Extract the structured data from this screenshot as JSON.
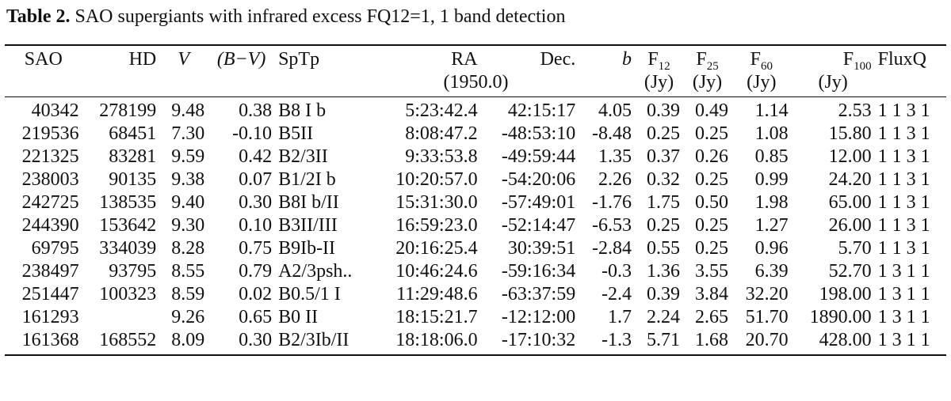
{
  "caption": {
    "label": "Table 2.",
    "text": "SAO supergiants with infrared excess FQ12=1, 1 band detection"
  },
  "header": {
    "sao": "SAO",
    "hd": "HD",
    "v": "V",
    "bv": "(B−V)",
    "sptp": "SpTp",
    "ra": "RA",
    "dec": "Dec.",
    "epoch": "(1950.0)",
    "b": "b",
    "f12": "F",
    "f12_sub": "12",
    "f25": "F",
    "f25_sub": "25",
    "f60": "F",
    "f60_sub": "60",
    "f100": "F",
    "f100_sub": "100",
    "fluxq": "FluxQ",
    "unit": "(Jy)"
  },
  "rows": [
    [
      "40342",
      "278199",
      "9.48",
      "0.38",
      "B8 I b",
      "5:23:42.4",
      "42:15:17",
      "4.05",
      "0.39",
      "0.49",
      "1.14",
      "2.53",
      "1 1 3 1"
    ],
    [
      "219536",
      "68451",
      "7.30",
      "-0.10",
      "B5II",
      "8:08:47.2",
      "-48:53:10",
      "-8.48",
      "0.25",
      "0.25",
      "1.08",
      "15.80",
      "1 1 3 1"
    ],
    [
      "221325",
      "83281",
      "9.59",
      "0.42",
      "B2/3II",
      "9:33:53.8",
      "-49:59:44",
      "1.35",
      "0.37",
      "0.26",
      "0.85",
      "12.00",
      "1 1 3 1"
    ],
    [
      "238003",
      "90135",
      "9.38",
      "0.07",
      "B1/2I b",
      "10:20:57.0",
      "-54:20:06",
      "2.26",
      "0.32",
      "0.25",
      "0.99",
      "24.20",
      "1 1 3 1"
    ],
    [
      "242725",
      "138535",
      "9.40",
      "0.30",
      "B8I b/II",
      "15:31:30.0",
      "-57:49:01",
      "-1.76",
      "1.75",
      "0.50",
      "1.98",
      "65.00",
      "1 1 3 1"
    ],
    [
      "244390",
      "153642",
      "9.30",
      "0.10",
      "B3II/III",
      "16:59:23.0",
      "-52:14:47",
      "-6.53",
      "0.25",
      "0.25",
      "1.27",
      "26.00",
      "1 1 3 1"
    ],
    [
      "69795",
      "334039",
      "8.28",
      "0.75",
      "B9Ib-II",
      "20:16:25.4",
      "30:39:51",
      "-2.84",
      "0.55",
      "0.25",
      "0.96",
      "5.70",
      "1 1 3 1"
    ],
    [
      "238497",
      "93795",
      "8.55",
      "0.79",
      "A2/3psh..",
      "10:46:24.6",
      "-59:16:34",
      "-0.3",
      "1.36",
      "3.55",
      "6.39",
      "52.70",
      "1 3 1 1"
    ],
    [
      "251447",
      "100323",
      "8.59",
      "0.02",
      "B0.5/1 I",
      "11:29:48.6",
      "-63:37:59",
      "-2.4",
      "0.39",
      "3.84",
      "32.20",
      "198.00",
      "1 3 1 1"
    ],
    [
      "161293",
      "",
      "9.26",
      "0.65",
      "B0 II",
      "18:15:21.7",
      "-12:12:00",
      "1.7",
      "2.24",
      "2.65",
      "51.70",
      "1890.00",
      "1 3 1 1"
    ],
    [
      "161368",
      "168552",
      "8.09",
      "0.30",
      "B2/3Ib/II",
      "18:18:06.0",
      "-17:10:32",
      "-1.3",
      "5.71",
      "1.68",
      "20.70",
      "428.00",
      "1 3 1 1"
    ]
  ]
}
